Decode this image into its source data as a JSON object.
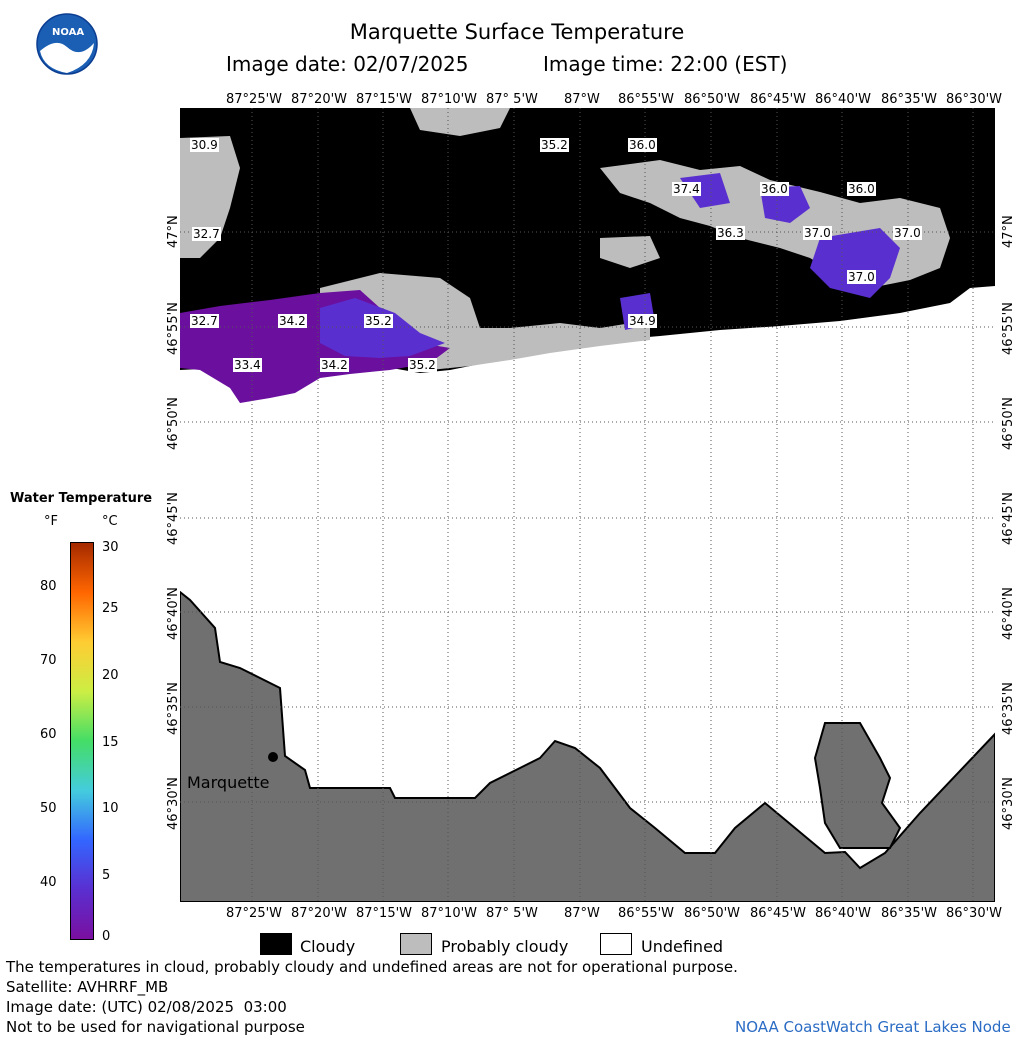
{
  "header": {
    "title": "Marquette Surface Temperature",
    "image_date_label": "Image date: 02/07/2025",
    "image_time_label": "Image time: 22:00 (EST)",
    "logo_text": "NOAA"
  },
  "map": {
    "lon_labels": [
      "87°25'W",
      "87°20'W",
      "87°15'W",
      "87°10'W",
      "87° 5'W",
      "87°W",
      "86°55'W",
      "86°50'W",
      "86°45'W",
      "86°40'W",
      "86°35'W",
      "86°30'W"
    ],
    "lat_labels": [
      "47°N",
      "46°55'N",
      "46°50'N",
      "46°45'N",
      "46°40'N",
      "46°35'N",
      "46°30'N"
    ],
    "city": "Marquette",
    "temperature_labels": [
      "30.9",
      "32.7",
      "32.7",
      "34.2",
      "35.2",
      "33.4",
      "34.2",
      "35.2",
      "35.2",
      "36.0",
      "34.9",
      "37.4",
      "36.0",
      "36.0",
      "36.3",
      "37.0",
      "37.0",
      "37.0"
    ]
  },
  "legend": {
    "title": "Water Temperature",
    "unit_f": "°F",
    "unit_c": "°C",
    "f_ticks": [
      "80",
      "70",
      "60",
      "50",
      "40"
    ],
    "c_ticks": [
      "30",
      "25",
      "20",
      "15",
      "10",
      "5",
      "0"
    ],
    "colors": [
      "#a52a00",
      "#ff6600",
      "#ffcc33",
      "#ccee44",
      "#44dd66",
      "#44ccdd",
      "#3366ff",
      "#5a2fd0",
      "#7a0fa0"
    ]
  },
  "key": {
    "cloudy": "Cloudy",
    "probably_cloudy": "Probably cloudy",
    "undefined": "Undefined"
  },
  "footer": {
    "note": "The temperatures in cloud, probably cloudy and undefined areas are not for operational purpose.",
    "satellite": "Satellite: AVHRRF_MB",
    "utc_date": "Image date: (UTC) 02/08/2025  03:00",
    "nav_warning": "Not to be used for navigational purpose",
    "credit": "NOAA CoastWatch Great Lakes Node"
  }
}
